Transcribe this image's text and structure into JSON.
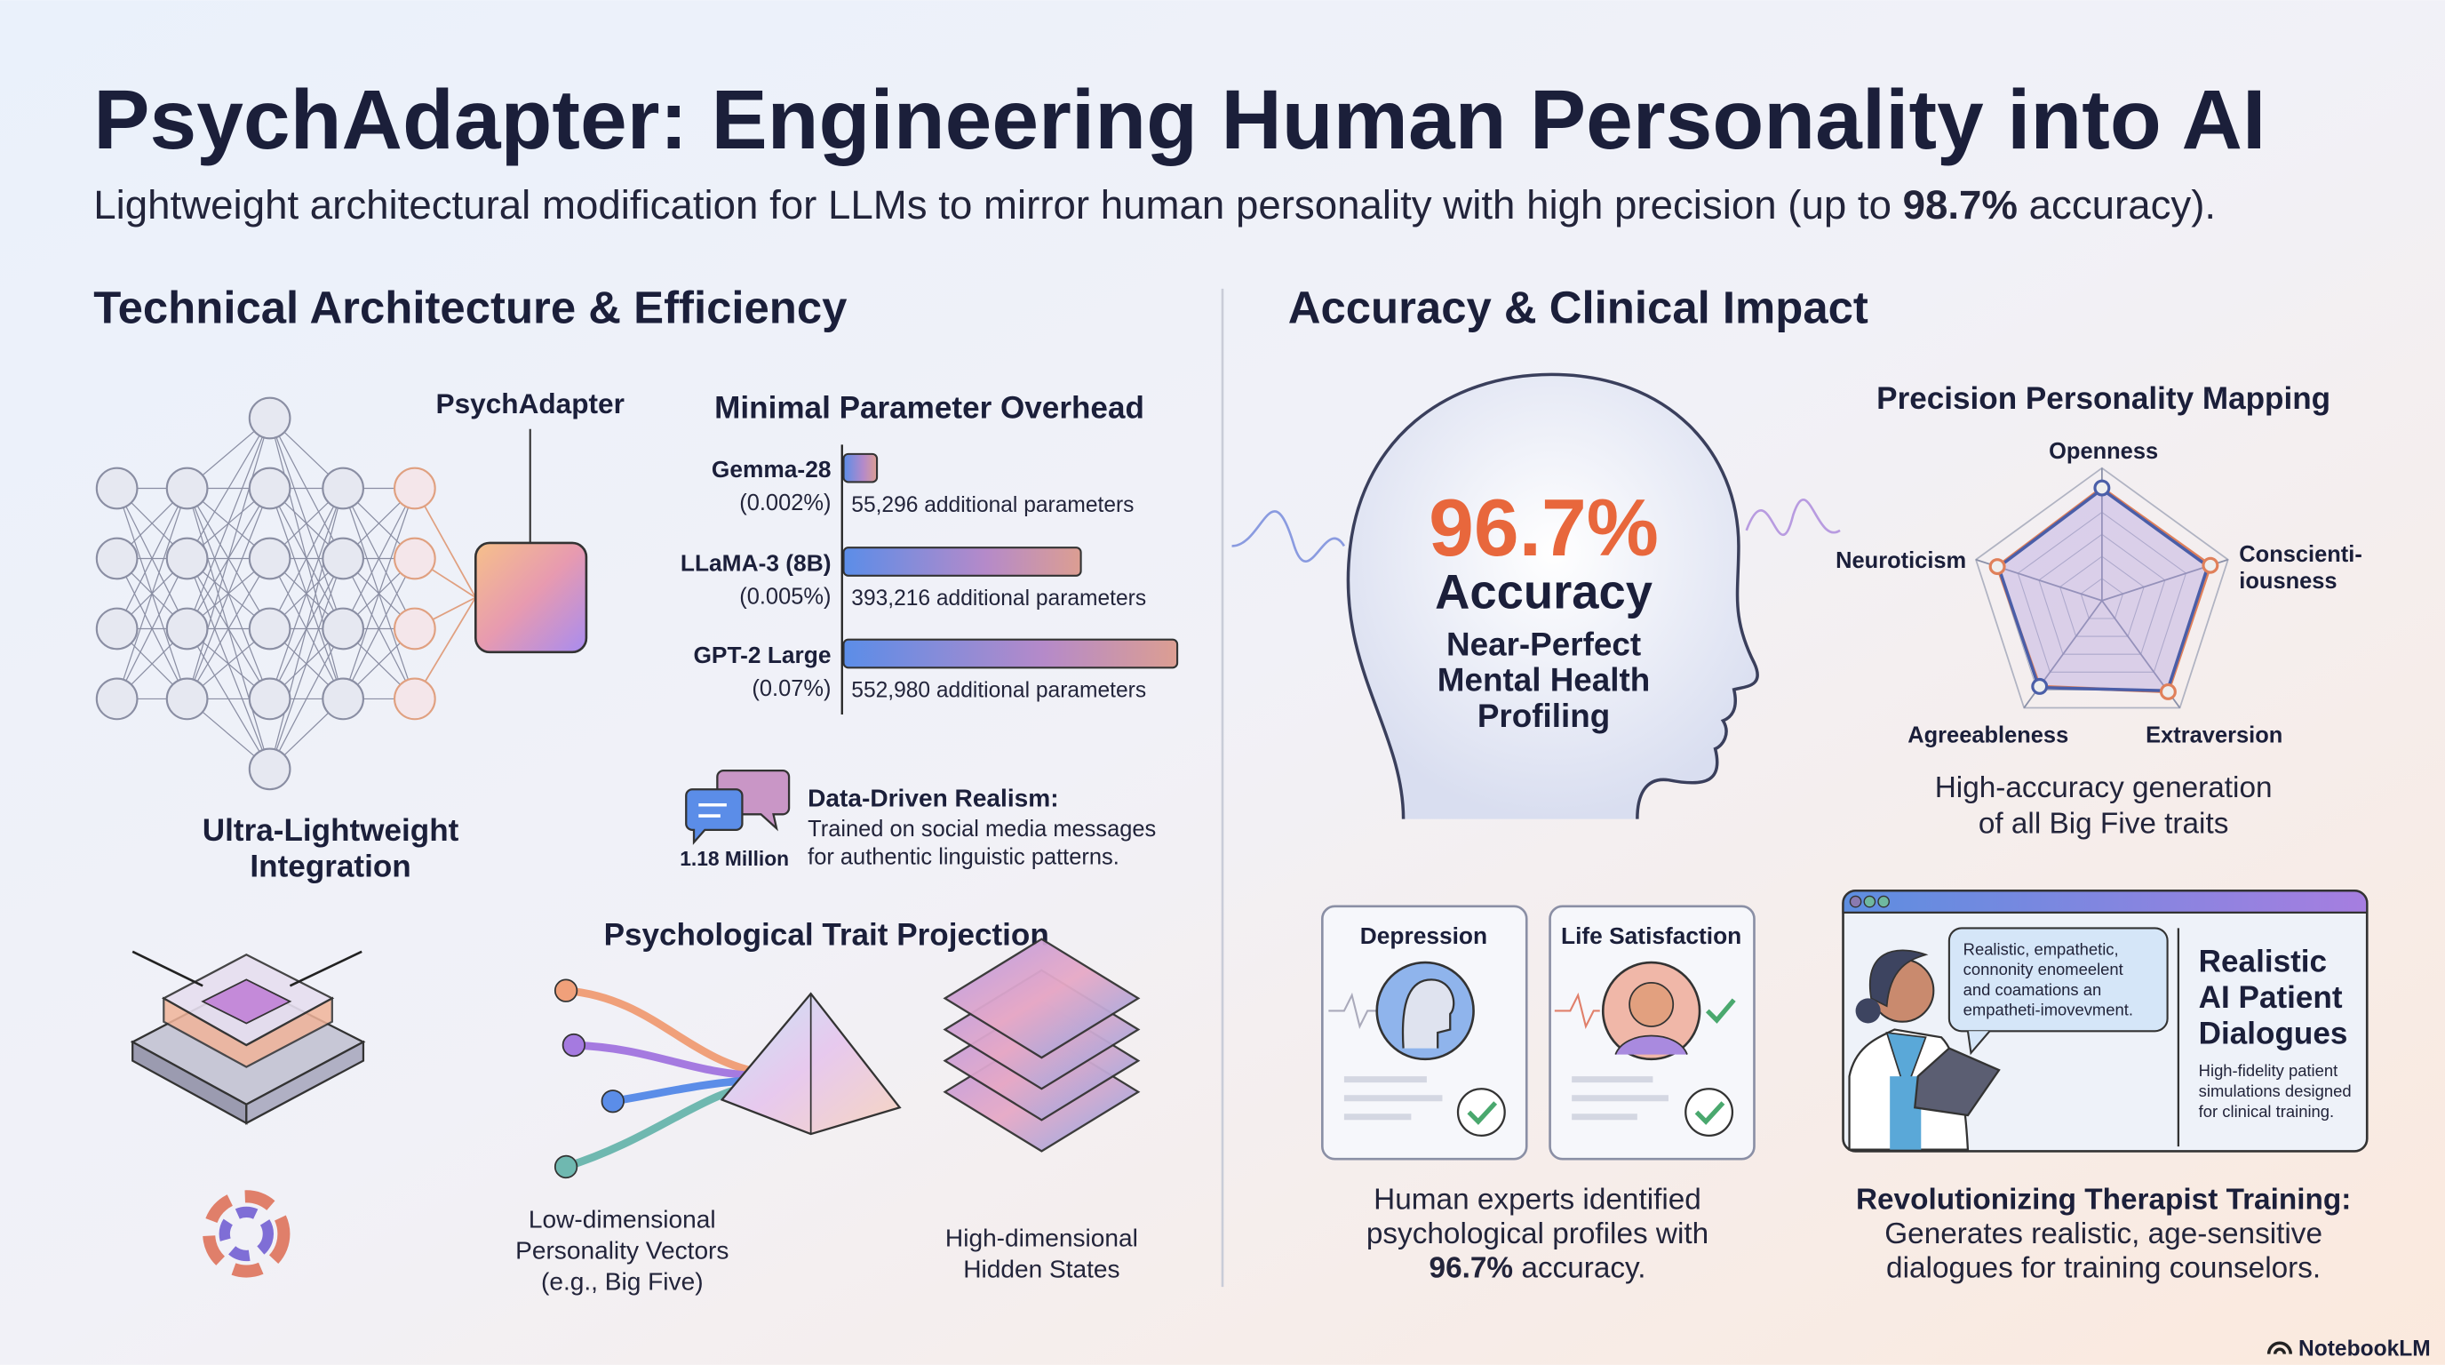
{
  "header": {
    "title": "PsychAdapter: Engineering Human Personality into AI",
    "subtitle_pre": "Lightweight architectural modification for LLMs to mirror human personality with high precision (up to ",
    "subtitle_bold": "98.7%",
    "subtitle_post": " accuracy)."
  },
  "left": {
    "heading": "Technical Architecture & Efficiency",
    "adapter_label": "PsychAdapter",
    "integration_label": [
      "Ultra-Lightweight",
      "Integration"
    ],
    "data_driven": {
      "count": "1.18 Million",
      "title": "Data-Driven Realism:",
      "lines": [
        "Trained on social media messages",
        "for authentic linguistic patterns."
      ]
    },
    "projection": {
      "heading": "Psychological Trait Projection",
      "low_label": [
        "Low-dimensional",
        "Personality Vectors",
        "(e.g., Big Five)"
      ],
      "high_label": [
        "High-dimensional",
        "Hidden States"
      ]
    }
  },
  "chart_data": [
    {
      "type": "bar",
      "title": "Minimal Parameter Overhead",
      "orientation": "horizontal",
      "categories": [
        "Gemma-28",
        "LLaMA-3 (8B)",
        "GPT-2 Large"
      ],
      "percent_labels": [
        "(0.002%)",
        "(0.005%)",
        "(0.07%)"
      ],
      "values": [
        55296,
        393216,
        552980
      ],
      "value_labels": [
        "55,296 additional parameters",
        "393,216 additional parameters",
        "552,980 additional parameters"
      ],
      "colors": [
        "#5b8de8",
        "#d99a94"
      ]
    },
    {
      "type": "radar",
      "title": "Precision Personality Mapping",
      "axes": [
        "Openness",
        "Conscientiousness",
        "Extraversion",
        "Agreeableness",
        "Neuroticism"
      ],
      "axis_labels": [
        "Openness",
        "Conscienti-",
        "iousness",
        "Extraversion",
        "Agreeableness",
        "Neuroticism"
      ],
      "range": [
        0,
        1
      ],
      "series": [
        {
          "values": [
            0.85,
            0.86,
            0.85,
            0.8,
            0.83
          ],
          "color": "#e0805a"
        },
        {
          "values": [
            0.84,
            0.84,
            0.84,
            0.81,
            0.82
          ],
          "color": "#4a5ea8"
        }
      ],
      "grid": true
    }
  ],
  "right": {
    "heading": "Accuracy & Clinical Impact",
    "head": {
      "value": "96.7%",
      "label": "Accuracy",
      "sub": [
        "Near-Perfect",
        "Mental Health",
        "Profiling"
      ],
      "accent": "#e8673c"
    },
    "radar_caption": [
      "High-accuracy generation",
      "of all Big Five traits"
    ],
    "cards": [
      {
        "title": "Depression"
      },
      {
        "title": "Life Satisfaction"
      }
    ],
    "cards_caption": [
      "Human experts identified",
      "psychological profiles with"
    ],
    "cards_caption_bold": "96.7%",
    "cards_caption_tail": " accuracy.",
    "dialog": {
      "bubble": [
        "Realistic, empathetic,",
        "connonity enomeelent",
        "and coamations an",
        "empatheti-imovevment."
      ],
      "title": [
        "Realistic",
        "AI Patient",
        "Dialogues"
      ],
      "desc": [
        "High-fidelity patient",
        "simulations designed",
        "for clinical training."
      ]
    },
    "training": {
      "title": "Revolutionizing Therapist Training:",
      "lines": [
        "Generates realistic, age-sensitive",
        "dialogues for training counselors."
      ]
    }
  },
  "footer": {
    "brand": "NotebookLM"
  }
}
